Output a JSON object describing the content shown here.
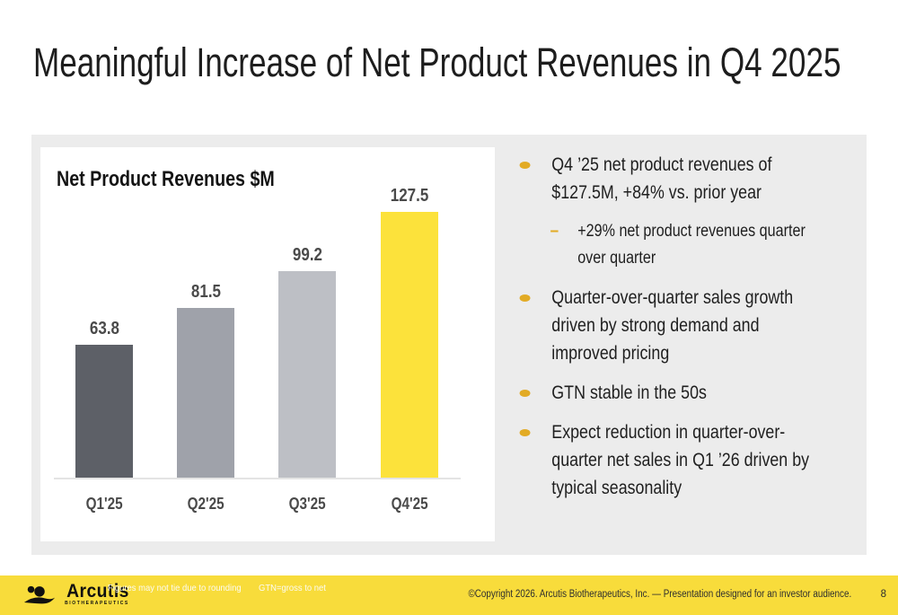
{
  "slide": {
    "title": "Meaningful Increase of Net Product Revenues in Q4 2025"
  },
  "chart_data": {
    "type": "bar",
    "title": "Net Product Revenues $M",
    "categories": [
      "Q1'25",
      "Q2'25",
      "Q3'25",
      "Q4'25"
    ],
    "values": [
      63.8,
      81.5,
      99.2,
      127.5
    ],
    "data_labels": [
      "63.8",
      "81.5",
      "99.2",
      "127.5"
    ],
    "bar_colors": [
      "#5d6067",
      "#9fa2aa",
      "#bdbfc5",
      "#fce23b"
    ],
    "xlabel": "",
    "ylabel": "",
    "ylim": [
      0,
      140
    ],
    "grid": false,
    "legend": false
  },
  "bullets": [
    {
      "level": 1,
      "lines": [
        "Q4 ’25 net product revenues of",
        "$127.5M, +84% vs. prior year"
      ]
    },
    {
      "level": 2,
      "lines": [
        "+29% net product revenues quarter",
        "over quarter"
      ]
    },
    {
      "level": 1,
      "lines": [
        "Quarter-over-quarter sales growth",
        "driven by strong demand and",
        "improved pricing"
      ]
    },
    {
      "level": 1,
      "lines": [
        "GTN stable in the 50s"
      ]
    },
    {
      "level": 1,
      "lines": [
        "Expect reduction in quarter-over-",
        "quarter net sales in Q1 ’26 driven by",
        "typical seasonality"
      ]
    }
  ],
  "footer": {
    "logo_name": "Arcutis",
    "logo_subtext": "BIOTHERAPEUTICS",
    "footnote_line1": "Figures may not tie due to rounding",
    "footnote_line2": "GTN=gross to net",
    "copyright": "©Copyright 2026. Arcutis Biotherapeutics, Inc.  —  Presentation designed for an investor audience.",
    "page_number": "8"
  },
  "colors": {
    "footer_yellow": "#f8dc3b",
    "highlight_bar_yellow": "#fce23b",
    "bullet_gold": "#e2ab25",
    "band_gray": "#ececec",
    "text_dark": "#1f1f1f"
  }
}
